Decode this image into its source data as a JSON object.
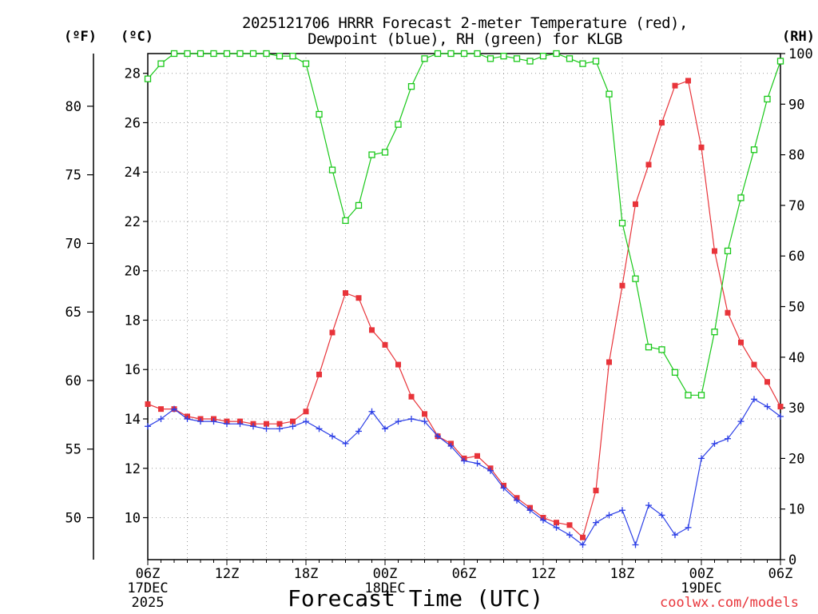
{
  "chart_data": {
    "type": "line",
    "title_line1": "2025121706 HRRR Forecast 2-meter Temperature (red),",
    "title_line2": "Dewpoint (blue), RH (green) for KLGB",
    "xlabel": "Forecast Time (UTC)",
    "credit": "coolwx.com/models",
    "units": {
      "fahrenheit": "(ºF)",
      "celsius": "(ºC)",
      "rh": "(RH)"
    },
    "x_hours_range": [
      0,
      48
    ],
    "y_celsius_range": [
      8.3,
      28.8
    ],
    "y_rh_range": [
      0,
      100
    ],
    "x_ticks": [
      {
        "hour": 0,
        "lines": [
          "06Z",
          "17DEC",
          "2025"
        ]
      },
      {
        "hour": 6,
        "lines": [
          "12Z"
        ]
      },
      {
        "hour": 12,
        "lines": [
          "18Z"
        ]
      },
      {
        "hour": 18,
        "lines": [
          "00Z",
          "18DEC"
        ]
      },
      {
        "hour": 24,
        "lines": [
          "06Z"
        ]
      },
      {
        "hour": 30,
        "lines": [
          "12Z"
        ]
      },
      {
        "hour": 36,
        "lines": [
          "18Z"
        ]
      },
      {
        "hour": 42,
        "lines": [
          "00Z",
          "19DEC"
        ]
      },
      {
        "hour": 48,
        "lines": [
          "06Z"
        ]
      }
    ],
    "celsius_ticks": [
      10,
      12,
      14,
      16,
      18,
      20,
      22,
      24,
      26,
      28
    ],
    "fahrenheit_ticks": [
      50,
      55,
      60,
      65,
      70,
      75,
      80
    ],
    "rh_ticks": [
      0,
      10,
      20,
      30,
      40,
      50,
      60,
      70,
      80,
      90,
      100
    ],
    "series": [
      {
        "name": "2-meter Temperature",
        "unit": "C",
        "color": "#e8343a",
        "marker": "filled-square",
        "values": [
          14.6,
          14.4,
          14.4,
          14.1,
          14.0,
          14.0,
          13.9,
          13.9,
          13.8,
          13.8,
          13.8,
          13.9,
          14.3,
          15.8,
          17.5,
          19.1,
          18.9,
          17.6,
          17.0,
          16.2,
          14.9,
          14.2,
          13.3,
          13.0,
          12.4,
          12.5,
          12.0,
          11.3,
          10.8,
          10.4,
          10.0,
          9.8,
          9.7,
          9.2,
          11.1,
          16.3,
          19.4,
          22.7,
          24.3,
          26.0,
          27.5,
          27.7,
          25.0,
          20.8,
          18.3,
          17.1,
          16.2,
          15.5,
          14.5
        ]
      },
      {
        "name": "Dewpoint",
        "unit": "C",
        "color": "#2c3fe6",
        "marker": "plus",
        "values": [
          13.7,
          14.0,
          14.4,
          14.0,
          13.9,
          13.9,
          13.8,
          13.8,
          13.7,
          13.6,
          13.6,
          13.7,
          13.9,
          13.6,
          13.3,
          13.0,
          13.5,
          14.3,
          13.6,
          13.9,
          14.0,
          13.9,
          13.3,
          12.9,
          12.3,
          12.2,
          11.9,
          11.2,
          10.7,
          10.3,
          9.9,
          9.6,
          9.3,
          8.9,
          9.8,
          10.1,
          10.3,
          8.9,
          10.5,
          10.1,
          9.3,
          9.6,
          12.4,
          13.0,
          13.2,
          13.9,
          14.8,
          14.5,
          14.1
        ]
      },
      {
        "name": "Relative Humidity",
        "unit": "%",
        "color": "#19c819",
        "marker": "open-square",
        "values": [
          95,
          98,
          100,
          100,
          100,
          100,
          100,
          100,
          100,
          100,
          99.5,
          99.5,
          98,
          88,
          77,
          67,
          70,
          80,
          80.5,
          86,
          93.5,
          99,
          100,
          100,
          100,
          100,
          99,
          99.5,
          99,
          98.5,
          99.5,
          100,
          99,
          98,
          98.5,
          92,
          66.5,
          55.5,
          42,
          41.5,
          37,
          32.5,
          32.5,
          45,
          61,
          71.5,
          81,
          91,
          98.5
        ]
      }
    ]
  }
}
